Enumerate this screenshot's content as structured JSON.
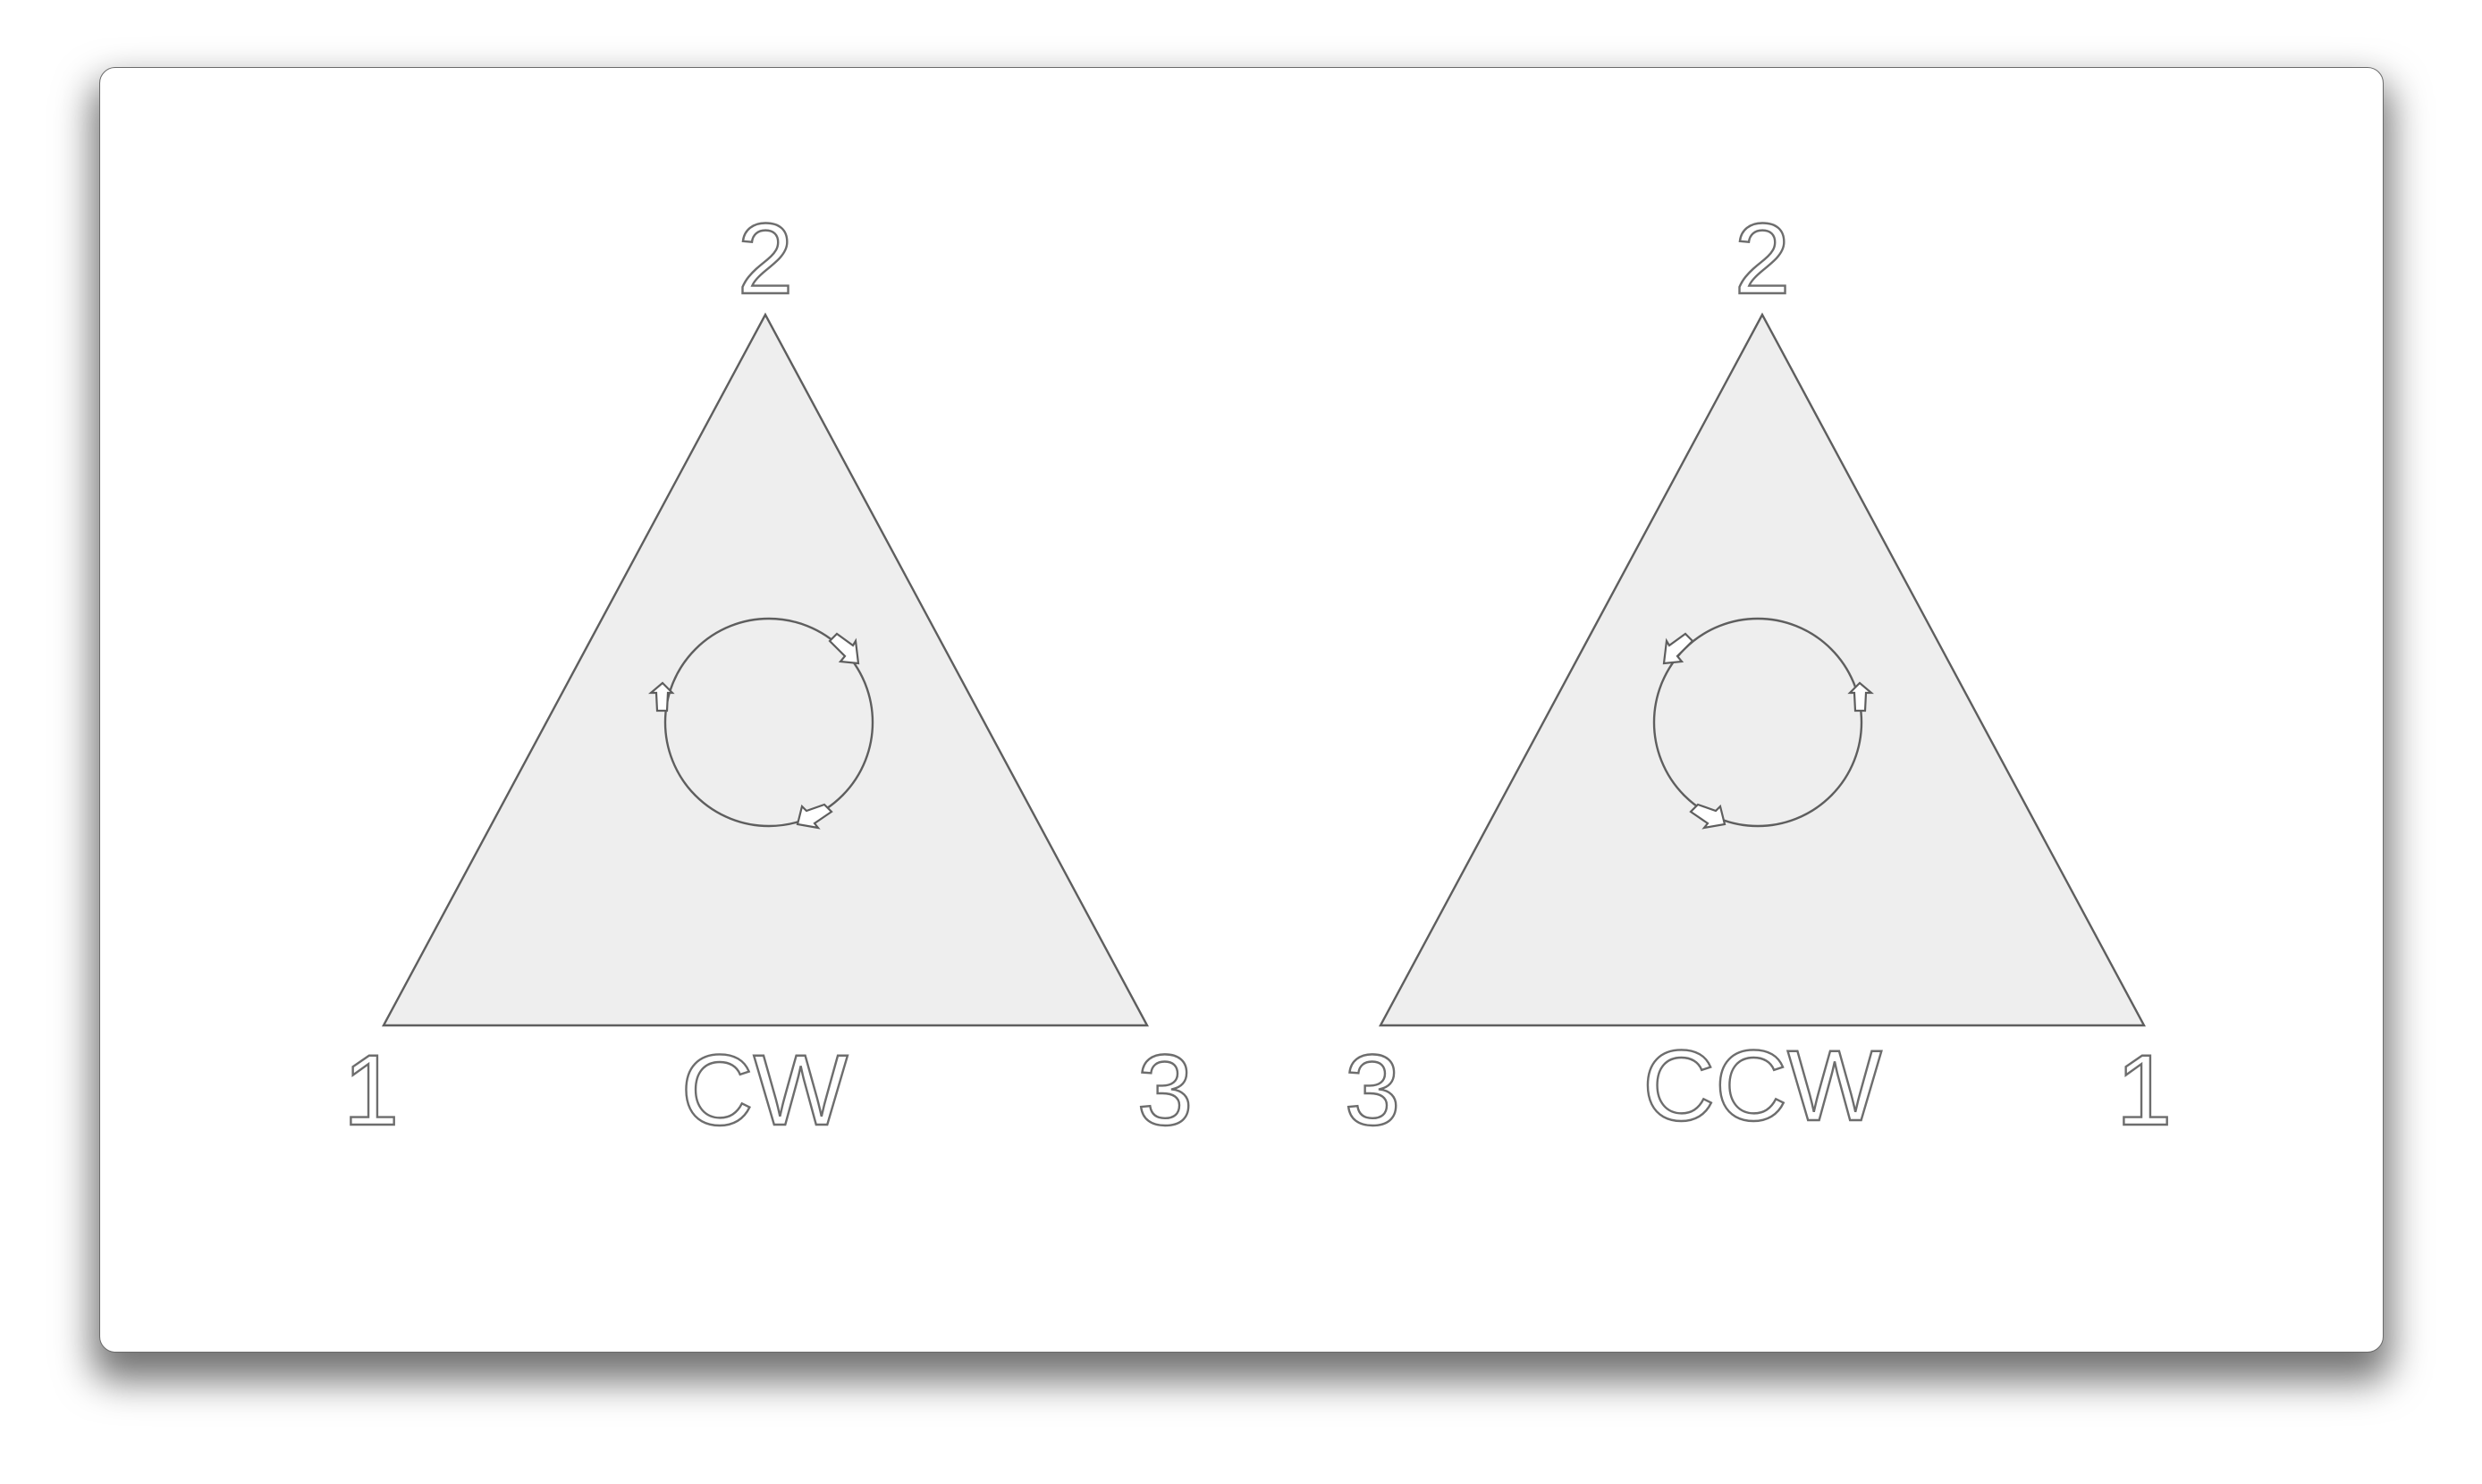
{
  "diagrams": [
    {
      "id": "cw",
      "caption": "CW",
      "vertex_top": "2",
      "vertex_left": "1",
      "vertex_right": "3",
      "rotation": "clockwise"
    },
    {
      "id": "ccw",
      "caption": "CCW",
      "vertex_top": "2",
      "vertex_left": "3",
      "vertex_right": "1",
      "rotation": "counterclockwise"
    }
  ],
  "colors": {
    "triangle_fill": "#eeeeee",
    "stroke": "#5e5e5e",
    "text_outline": "#6d6d6d",
    "background": "#ffffff"
  }
}
